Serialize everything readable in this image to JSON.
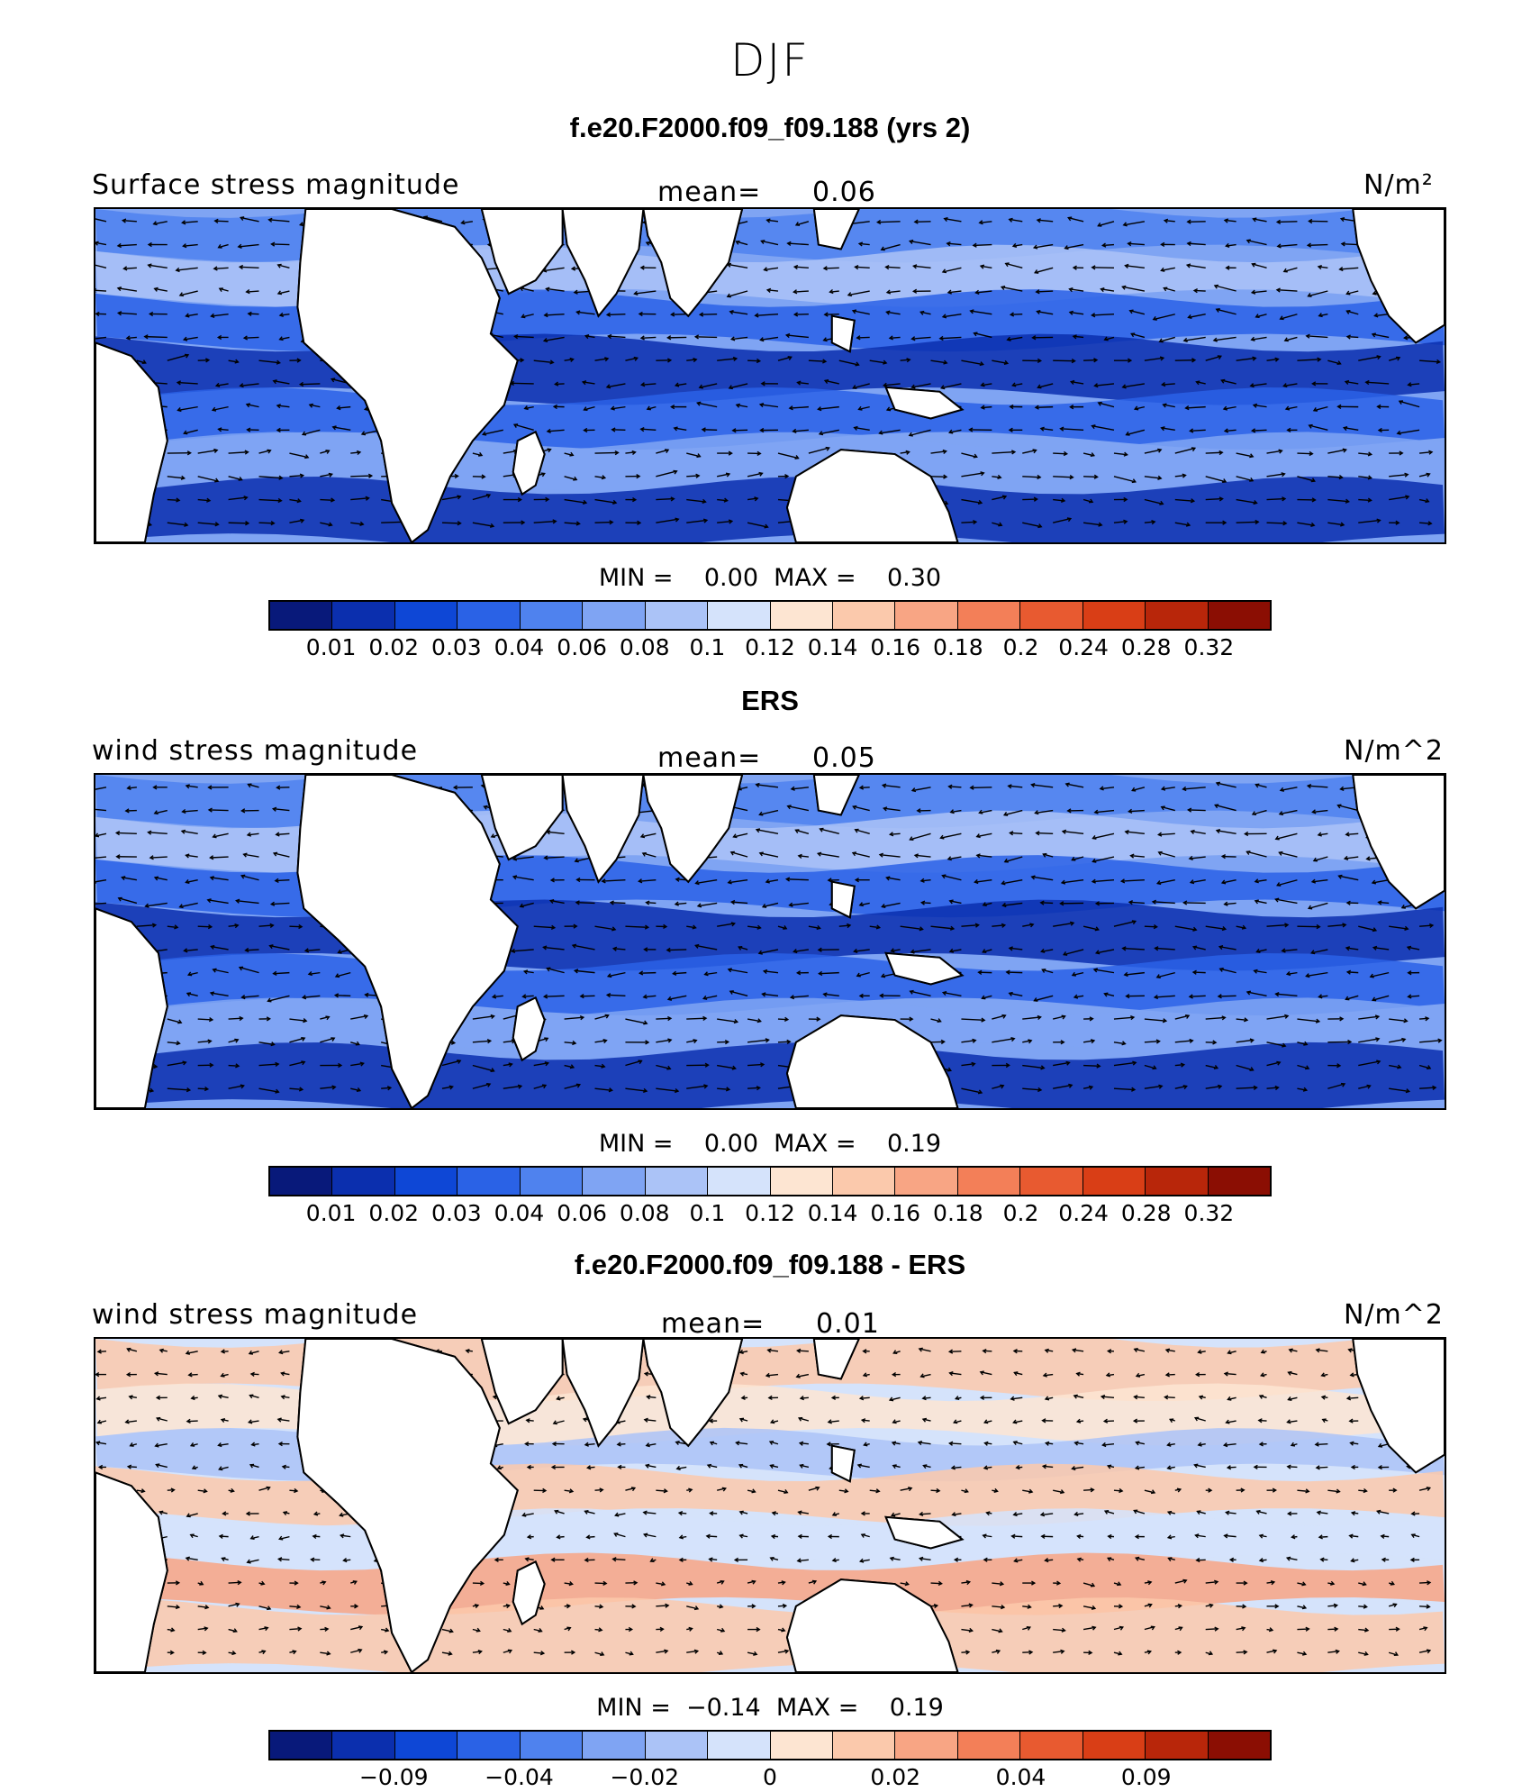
{
  "season": "DJF",
  "panels": [
    {
      "title": "f.e20.F2000.f09_f09.188 (yrs 2)",
      "left_label": "Surface stress magnitude",
      "mean_label": "mean=",
      "mean_value": "0.06",
      "units": "N/m²",
      "min_max": "MIN =    0.00  MAX =    0.30",
      "ticks": [
        "0.01",
        "0.02",
        "0.03",
        "0.04",
        "0.06",
        "0.08",
        "0.1",
        "0.12",
        "0.14",
        "0.16",
        "0.18",
        "0.2",
        "0.24",
        "0.28",
        "0.32"
      ],
      "colors": [
        "#08197a",
        "#0b2fae",
        "#0e47d6",
        "#2a62e6",
        "#4f82ee",
        "#7fa4f3",
        "#abc3f7",
        "#d5e3fb",
        "#fde5d2",
        "#fbc9ac",
        "#f8a584",
        "#f37f58",
        "#e85a30",
        "#d93e16",
        "#b8260a",
        "#8b0e03"
      ]
    },
    {
      "title": "ERS",
      "left_label": "wind stress magnitude",
      "mean_label": "mean=",
      "mean_value": "0.05",
      "units": "N/m^2",
      "min_max": "MIN =    0.00  MAX =    0.19",
      "ticks": [
        "0.01",
        "0.02",
        "0.03",
        "0.04",
        "0.06",
        "0.08",
        "0.1",
        "0.12",
        "0.14",
        "0.16",
        "0.18",
        "0.2",
        "0.24",
        "0.28",
        "0.32"
      ],
      "colors": [
        "#08197a",
        "#0b2fae",
        "#0e47d6",
        "#2a62e6",
        "#4f82ee",
        "#7fa4f3",
        "#abc3f7",
        "#d5e3fb",
        "#fde5d2",
        "#fbc9ac",
        "#f8a584",
        "#f37f58",
        "#e85a30",
        "#d93e16",
        "#b8260a",
        "#8b0e03"
      ]
    },
    {
      "title": "f.e20.F2000.f09_f09.188 - ERS",
      "left_label": "wind stress magnitude",
      "mean_label": "mean=",
      "mean_value": "0.01",
      "units": "N/m^2",
      "min_max": "MIN =  −0.14  MAX =    0.19",
      "ticks": [
        "−0.09",
        "−0.04",
        "−0.02",
        "0",
        "0.02",
        "0.04",
        "0.09"
      ],
      "colors": [
        "#08197a",
        "#0b2fae",
        "#0e47d6",
        "#2a62e6",
        "#4f82ee",
        "#7fa4f3",
        "#abc3f7",
        "#d5e3fb",
        "#fde5d2",
        "#fbc9ac",
        "#f8a584",
        "#f37f58",
        "#e85a30",
        "#d93e16",
        "#b8260a",
        "#8b0e03"
      ]
    }
  ]
}
